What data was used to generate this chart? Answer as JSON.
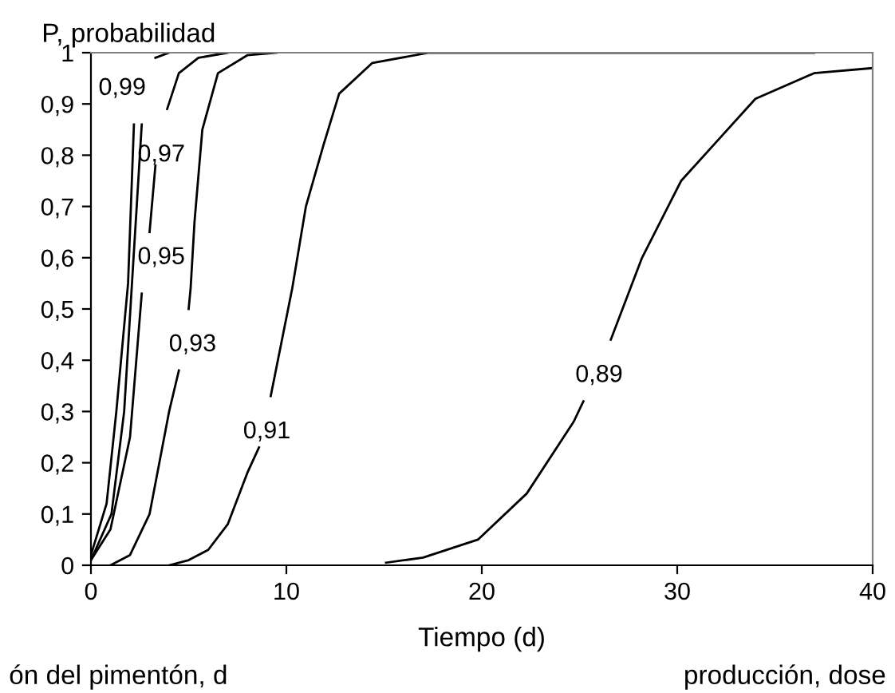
{
  "chart_data": {
    "type": "line",
    "xlabel": "Tiempo (d)",
    "ylabel": "P, probabilidad",
    "xlim": [
      0,
      40
    ],
    "xticks": [
      0,
      10,
      20,
      30,
      40
    ],
    "ylim": [
      0,
      1
    ],
    "yticks": [
      0,
      {
        "value": 0.1,
        "label": "0,1"
      },
      {
        "value": 0.2,
        "label": "0,2"
      },
      {
        "value": 0.3,
        "label": "0,3"
      },
      {
        "value": 0.4,
        "label": "0,4"
      },
      {
        "value": 0.5,
        "label": "0,5"
      },
      {
        "value": 0.6,
        "label": "0,6"
      },
      {
        "value": 0.7,
        "label": "0,7"
      },
      {
        "value": 0.8,
        "label": "0,8"
      },
      {
        "value": 0.9,
        "label": "0,9"
      },
      1
    ],
    "grid": false,
    "legend": false,
    "marker": "none",
    "line_style": "solid",
    "series": [
      {
        "color": "#000000",
        "x": [
          0,
          0.8,
          1.3,
          1.9,
          2.2,
          2.8,
          3.3,
          4
        ],
        "values": [
          0.02,
          0.12,
          0.3,
          0.55,
          0.86,
          null,
          0.99,
          1
        ]
      },
      {
        "color": "#000000",
        "x": [
          0,
          1.05,
          1.7,
          2.1,
          2.6
        ],
        "values": [
          0.01,
          0.1,
          0.3,
          0.55,
          0.86
        ]
      },
      {
        "color": "#000000",
        "x": [
          0,
          1,
          2,
          2.6,
          2.8,
          3.0,
          3.3,
          3.6,
          3.9,
          4.5,
          5.5,
          7
        ],
        "values": [
          0.01,
          0.07,
          0.25,
          0.53,
          null,
          0.65,
          0.78,
          null,
          0.89,
          0.96,
          0.99,
          1
        ]
      },
      {
        "color": "#000000",
        "x": [
          1,
          2,
          3,
          4,
          4.5,
          4.7,
          5.0,
          5.1,
          5.3,
          5.7,
          6.5,
          8,
          9.5
        ],
        "values": [
          0,
          0.02,
          0.1,
          0.3,
          0.38,
          null,
          0.5,
          0.54,
          0.67,
          0.85,
          0.96,
          0.995,
          1
        ]
      },
      {
        "color": "#000000",
        "x": [
          4,
          5,
          6,
          7,
          8,
          8.6,
          9.0,
          9.2,
          10.3,
          11.0,
          11.9,
          12.7,
          14.4,
          17.3,
          37
        ],
        "values": [
          0,
          0.01,
          0.03,
          0.08,
          0.18,
          0.23,
          null,
          0.33,
          0.54,
          0.7,
          0.82,
          0.92,
          0.98,
          1,
          1
        ]
      },
      {
        "color": "#000000",
        "x": [
          15.1,
          17,
          19.8,
          22.3,
          24.7,
          25.2,
          25.8,
          26.6,
          28.2,
          30.2,
          32.1,
          34,
          37,
          40
        ],
        "values": [
          0.005,
          0.015,
          0.05,
          0.14,
          0.28,
          0.32,
          null,
          0.44,
          0.6,
          0.75,
          0.83,
          0.91,
          0.96,
          0.97
        ]
      }
    ],
    "annotations": [
      "0,99",
      "0,97",
      "0,95",
      "0,93",
      "0,91",
      "0,89",
      "ón del pimentón, d",
      "producción, dose"
    ]
  }
}
